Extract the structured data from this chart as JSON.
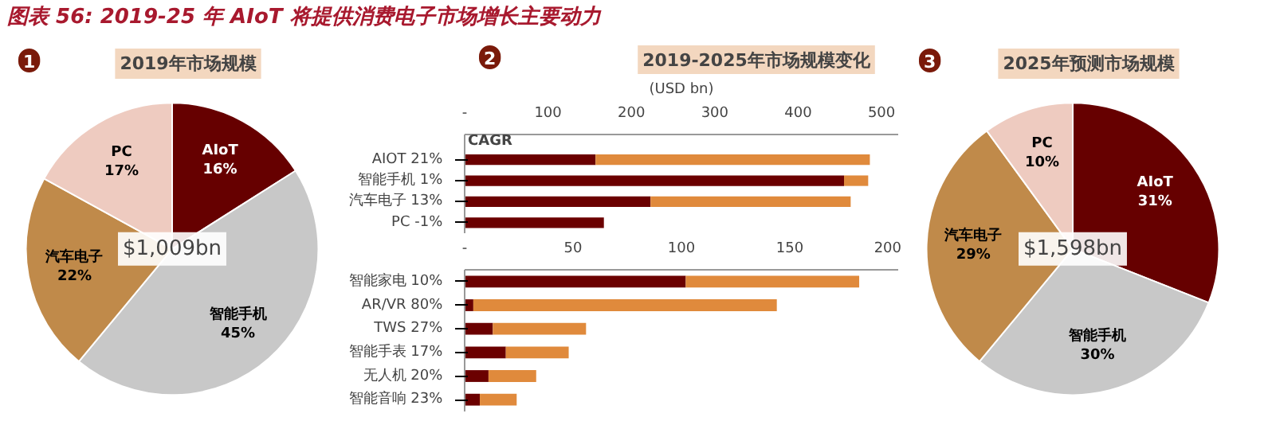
{
  "chart_data": [
    {
      "type": "other",
      "title": "图表 56: 2019-25 年 AIoT 将提供消费电子市场增长主要动力"
    },
    {
      "type": "pie",
      "title": "2019年市场规模",
      "categories": [
        "AIoT",
        "智能手机",
        "汽车电子",
        "PC"
      ],
      "values": [
        16,
        45,
        22,
        17
      ],
      "value_labels": [
        "16%",
        "45%",
        "22%",
        "17%"
      ],
      "colors": [
        "#660000",
        "#c8c8c8",
        "#c08a4a",
        "#eecbc0"
      ],
      "annotations": [
        "1",
        "$1,009bn"
      ]
    },
    {
      "type": "bar",
      "title": "2019-2025年市场规模变化",
      "xlabel": "(USD bn)",
      "orientation": "horizontal",
      "stacked": true,
      "categories": [
        "AIOT  21%",
        "智能手机  1%",
        "汽车电子  13%",
        "PC  -1%"
      ],
      "series": [
        {
          "color": "#6b0000",
          "values": [
            157,
            455,
            223,
            167
          ]
        },
        {
          "color": "#e08a3c",
          "values": [
            329,
            29,
            240,
            0
          ]
        }
      ],
      "xlim": [
        0,
        520
      ],
      "xticks": [
        {
          "value": 0,
          "label": "-"
        },
        100,
        200,
        300,
        400,
        500
      ],
      "annotations": [
        "2",
        "CAGR"
      ]
    },
    {
      "type": "bar",
      "orientation": "horizontal",
      "stacked": true,
      "categories": [
        "智能家电  10%",
        "AR/VR  80%",
        "TWS  27%",
        "智能手表  17%",
        "无人机  20%",
        "智能音响  23%"
      ],
      "series": [
        {
          "color": "#6b0000",
          "values": [
            102,
            4,
            13,
            19,
            11,
            7
          ]
        },
        {
          "color": "#e08a3c",
          "values": [
            80,
            140,
            43,
            29,
            22,
            17
          ]
        }
      ],
      "xlim": [
        0,
        200
      ],
      "xticks": [
        {
          "value": 0,
          "label": "-"
        },
        50,
        100,
        150,
        200
      ]
    },
    {
      "type": "pie",
      "title": "2025年预测市场规模",
      "categories": [
        "AIoT",
        "智能手机",
        "汽车电子",
        "PC"
      ],
      "values": [
        31,
        30,
        29,
        10
      ],
      "value_labels": [
        "31%",
        "30%",
        "29%",
        "10%"
      ],
      "colors": [
        "#660000",
        "#c8c8c8",
        "#c08a4a",
        "#eecbc0"
      ],
      "annotations": [
        "3",
        "$1,598bn"
      ]
    }
  ]
}
